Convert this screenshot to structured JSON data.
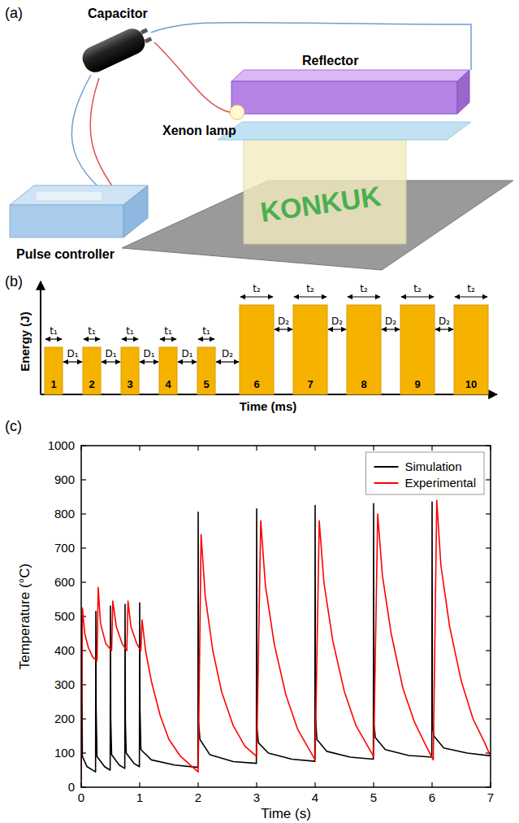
{
  "panel_a": {
    "label": "(a)",
    "parts": {
      "capacitor": "Capacitor",
      "reflector": "Reflector",
      "lamp": "Xenon lamp",
      "controller": "Pulse controller",
      "sample": "KONKUK"
    }
  },
  "panel_b": {
    "label": "(b)",
    "y_axis": "Energy (J)",
    "x_axis": "Time (ms)",
    "groups": [
      {
        "duration": "t₁",
        "delay": "D₁",
        "pulses": [
          "1",
          "2",
          "3",
          "4",
          "5"
        ]
      },
      {
        "duration": "t₂",
        "delay": "D₂",
        "pulses": [
          "6",
          "7",
          "8",
          "9",
          "10"
        ]
      }
    ]
  },
  "chart_data": {
    "type": "line",
    "panel_label": "(c)",
    "x_label": "Time (s)",
    "y_label": "Temperature (°C)",
    "xlim": [
      0,
      7
    ],
    "xticks": [
      0,
      1,
      2,
      3,
      4,
      5,
      6,
      7
    ],
    "ylim": [
      0,
      1000
    ],
    "yticks": [
      0,
      100,
      200,
      300,
      400,
      500,
      600,
      700,
      800,
      900,
      1000
    ],
    "legend": "upper right",
    "grid": false,
    "series": [
      {
        "name": "Simulation",
        "color": "#000000",
        "x": [
          0,
          0.005,
          0.02,
          0.1,
          0.245,
          0.25,
          0.255,
          0.27,
          0.4,
          0.495,
          0.5,
          0.505,
          0.52,
          0.65,
          0.745,
          0.75,
          0.755,
          0.77,
          0.9,
          0.995,
          1.0,
          1.005,
          1.02,
          1.2,
          1.6,
          1.995,
          2.0,
          2.005,
          2.03,
          2.2,
          2.6,
          2.995,
          3.0,
          3.005,
          3.03,
          3.2,
          3.6,
          3.995,
          4.0,
          4.005,
          4.03,
          4.2,
          4.6,
          4.995,
          5.0,
          5.005,
          5.03,
          5.2,
          5.6,
          5.995,
          6.0,
          6.005,
          6.03,
          6.2,
          6.6,
          7.0
        ],
        "values": [
          30,
          500,
          90,
          60,
          45,
          515,
          230,
          90,
          60,
          50,
          530,
          200,
          95,
          65,
          55,
          535,
          190,
          100,
          70,
          60,
          540,
          230,
          110,
          80,
          65,
          58,
          805,
          195,
          140,
          95,
          75,
          70,
          815,
          175,
          130,
          100,
          82,
          76,
          825,
          215,
          140,
          105,
          88,
          82,
          830,
          185,
          145,
          110,
          93,
          88,
          835,
          190,
          150,
          115,
          100,
          92
        ]
      },
      {
        "name": "Experimental",
        "color": "#ff0000",
        "x": [
          0,
          0.02,
          0.06,
          0.12,
          0.2,
          0.27,
          0.29,
          0.33,
          0.42,
          0.52,
          0.54,
          0.6,
          0.7,
          0.78,
          0.8,
          0.85,
          0.95,
          1.02,
          1.04,
          1.1,
          1.2,
          1.35,
          1.5,
          1.7,
          1.9,
          2.0,
          2.05,
          2.12,
          2.25,
          2.4,
          2.6,
          2.8,
          3.0,
          3.07,
          3.15,
          3.3,
          3.5,
          3.7,
          3.9,
          4.0,
          4.07,
          4.15,
          4.3,
          4.5,
          4.7,
          4.9,
          5.0,
          5.07,
          5.15,
          5.3,
          5.5,
          5.7,
          5.9,
          6.02,
          6.08,
          6.15,
          6.3,
          6.5,
          6.7,
          6.9,
          7.0
        ],
        "values": [
          20,
          525,
          450,
          410,
          380,
          370,
          585,
          480,
          420,
          400,
          545,
          470,
          420,
          400,
          545,
          470,
          420,
          400,
          490,
          400,
          310,
          210,
          140,
          90,
          60,
          45,
          740,
          560,
          400,
          280,
          180,
          120,
          90,
          780,
          590,
          420,
          270,
          170,
          110,
          80,
          780,
          600,
          430,
          280,
          180,
          120,
          90,
          800,
          620,
          450,
          290,
          190,
          120,
          80,
          840,
          650,
          470,
          310,
          200,
          130,
          90
        ]
      }
    ]
  }
}
